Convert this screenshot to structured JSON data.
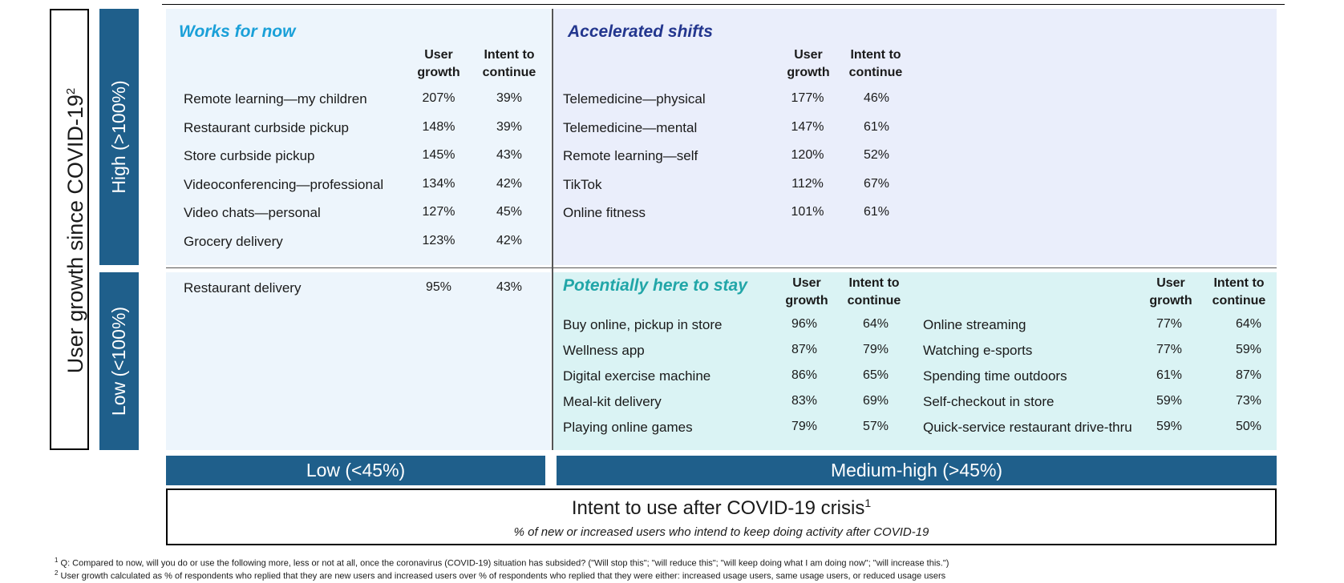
{
  "y_axis": {
    "label": "User growth since COVID-19",
    "sup": "2"
  },
  "rows": {
    "high": "High (>100%)",
    "low": "Low (<100%)"
  },
  "columns": {
    "low": "Low (<45%)",
    "high": "Medium-high (>45%)"
  },
  "x_axis": {
    "title": "Intent to use after COVID-19 crisis",
    "sup": "1",
    "subtitle": "% of new or increased users who intend to keep doing activity after COVID-19"
  },
  "col_headers": {
    "growth": "User\ngrowth",
    "intent": "Intent to\ncontinue"
  },
  "quadrants": {
    "works_for_now": {
      "title": "Works for now",
      "items": [
        {
          "label": "Remote learning—my children",
          "growth": "207%",
          "intent": "39%"
        },
        {
          "label": "Restaurant curbside pickup",
          "growth": "148%",
          "intent": "39%"
        },
        {
          "label": "Store curbside pickup",
          "growth": "145%",
          "intent": "43%"
        },
        {
          "label": "Videoconferencing—professional",
          "growth": "134%",
          "intent": "42%"
        },
        {
          "label": "Video chats—personal",
          "growth": "127%",
          "intent": "45%"
        },
        {
          "label": "Grocery delivery",
          "growth": "123%",
          "intent": "42%"
        }
      ]
    },
    "accelerated_shifts": {
      "title": "Accelerated shifts",
      "items": [
        {
          "label": "Telemedicine—physical",
          "growth": "177%",
          "intent": "46%"
        },
        {
          "label": "Telemedicine—mental",
          "growth": "147%",
          "intent": "61%"
        },
        {
          "label": "Remote learning—self",
          "growth": "120%",
          "intent": "52%"
        },
        {
          "label": "TikTok",
          "growth": "112%",
          "intent": "67%"
        },
        {
          "label": "Online fitness",
          "growth": "101%",
          "intent": "61%"
        }
      ]
    },
    "low_low": {
      "items": [
        {
          "label": "Restaurant delivery",
          "growth": "95%",
          "intent": "43%"
        }
      ]
    },
    "here_to_stay": {
      "title": "Potentially here to stay",
      "left": [
        {
          "label": "Buy online, pickup in store",
          "growth": "96%",
          "intent": "64%"
        },
        {
          "label": "Wellness app",
          "growth": "87%",
          "intent": "79%"
        },
        {
          "label": "Digital exercise machine",
          "growth": "86%",
          "intent": "65%"
        },
        {
          "label": "Meal-kit delivery",
          "growth": "83%",
          "intent": "69%"
        },
        {
          "label": "Playing online games",
          "growth": "79%",
          "intent": "57%"
        }
      ],
      "right": [
        {
          "label": "Online streaming",
          "growth": "77%",
          "intent": "64%"
        },
        {
          "label": "Watching e-sports",
          "growth": "77%",
          "intent": "59%"
        },
        {
          "label": "Spending time outdoors",
          "growth": "61%",
          "intent": "87%"
        },
        {
          "label": "Self-checkout in store",
          "growth": "59%",
          "intent": "73%"
        },
        {
          "label": "Quick-service restaurant drive-thru",
          "growth": "59%",
          "intent": "50%"
        }
      ]
    }
  },
  "footnotes": [
    {
      "sup": "1",
      "text": "Q: Compared to now, will you do or use the following more, less or not at all, once the coronavirus (COVID-19) situation has subsided? (\"Will stop this\"; \"will reduce this\"; \"will keep doing what I am doing now\"; \"will increase this.\")"
    },
    {
      "sup": "2",
      "text": "User growth calculated as % of respondents who replied that they are new users and increased users over % of respondents who replied that they were either: increased usage users, same usage users, or reduced usage users"
    }
  ]
}
